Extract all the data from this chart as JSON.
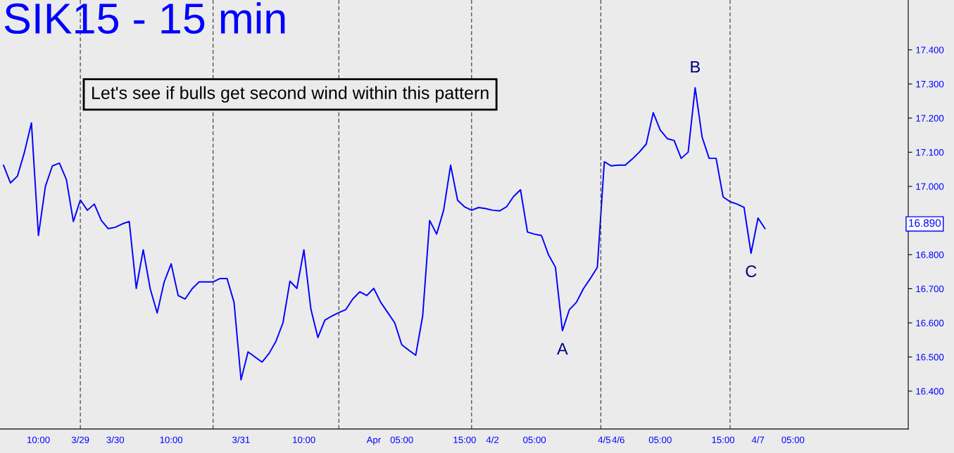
{
  "chart_data": {
    "type": "line",
    "title": "SIK15 - 15 min",
    "categories": [
      null,
      null,
      null,
      null,
      null,
      "10:00",
      null,
      null,
      null,
      null,
      null,
      "3/29",
      null,
      null,
      null,
      null,
      "3/30",
      null,
      null,
      null,
      null,
      null,
      null,
      null,
      "10:00",
      null,
      null,
      null,
      null,
      null,
      null,
      null,
      null,
      null,
      "3/31",
      null,
      null,
      null,
      null,
      null,
      null,
      null,
      null,
      "10:00",
      null,
      null,
      null,
      null,
      null,
      null,
      null,
      null,
      null,
      "Apr",
      null,
      null,
      null,
      "05:00",
      null,
      null,
      null,
      null,
      null,
      null,
      null,
      null,
      "15:00",
      null,
      null,
      null,
      "4/2",
      null,
      null,
      null,
      null,
      null,
      "05:00",
      null,
      null,
      null,
      null,
      null,
      null,
      null,
      null,
      null,
      "4/5",
      null,
      "4/6",
      null,
      null,
      null,
      null,
      null,
      "05:00",
      null,
      null,
      null,
      null,
      null,
      null,
      null,
      null,
      "15:00",
      null,
      null,
      null,
      null,
      "4/7",
      null,
      null,
      null,
      null,
      "05:00",
      null,
      null,
      null,
      null,
      null,
      null,
      null,
      null,
      null,
      null,
      null,
      null,
      null,
      null,
      null,
      null
    ],
    "series": [
      {
        "color": "#0000ff",
        "values": [
          17.062,
          17.01,
          17.03,
          17.1,
          17.186,
          16.856,
          17.0,
          17.06,
          17.068,
          17.02,
          16.897,
          16.96,
          16.93,
          16.948,
          16.9,
          16.876,
          16.88,
          16.89,
          16.897,
          16.701,
          16.814,
          16.7,
          16.629,
          16.72,
          16.773,
          16.68,
          16.67,
          16.7,
          16.72,
          16.72,
          16.72,
          16.73,
          16.73,
          16.66,
          16.433,
          16.515,
          16.5,
          16.485,
          16.51,
          16.546,
          16.6,
          16.722,
          16.701,
          16.814,
          16.64,
          16.557,
          16.608,
          16.62,
          16.63,
          16.639,
          16.67,
          16.691,
          16.68,
          16.701,
          16.66,
          16.63,
          16.6,
          16.536,
          16.52,
          16.505,
          16.62,
          16.9,
          16.86,
          16.93,
          17.062,
          16.959,
          16.94,
          16.93,
          16.938,
          16.935,
          16.93,
          16.928,
          16.94,
          16.97,
          16.99,
          16.866,
          16.86,
          16.856,
          16.8,
          16.763,
          16.577,
          16.639,
          16.66,
          16.7,
          16.73,
          16.763,
          17.072,
          17.06,
          17.062,
          17.062,
          17.08,
          17.1,
          17.124,
          17.216,
          17.165,
          17.14,
          17.134,
          17.082,
          17.1,
          17.289,
          17.144,
          17.082,
          17.082,
          16.969,
          16.955,
          16.948,
          16.938,
          16.804,
          16.907,
          16.876,
          null,
          null,
          null,
          null,
          null,
          null,
          null,
          null,
          null,
          null,
          null,
          null,
          null,
          null,
          null,
          null,
          null,
          null,
          null,
          null
        ]
      }
    ],
    "ylim": [
      16.289,
      17.546
    ],
    "yticks": [
      {
        "value": 16.4,
        "label": "16.400"
      },
      {
        "value": 16.5,
        "label": "16.500"
      },
      {
        "value": 16.6,
        "label": "16.600"
      },
      {
        "value": 16.7,
        "label": "16.700"
      },
      {
        "value": 16.8,
        "label": "16.800"
      },
      {
        "value": 16.9,
        "label": null
      },
      {
        "value": 17.0,
        "label": "17.000"
      },
      {
        "value": 17.1,
        "label": "17.100"
      },
      {
        "value": 17.2,
        "label": "17.200"
      },
      {
        "value": 17.3,
        "label": "17.300"
      },
      {
        "value": 17.4,
        "label": "17.400"
      }
    ],
    "annotations": [
      "Let's see if bulls get second wind within this pattern",
      {
        "text": "A",
        "y": 16.577
      },
      {
        "text": "B",
        "y": 17.289
      },
      {
        "text": "C",
        "y": 16.804
      },
      "16.890"
    ],
    "grid": false,
    "marker": "none",
    "line_style": "solid"
  }
}
